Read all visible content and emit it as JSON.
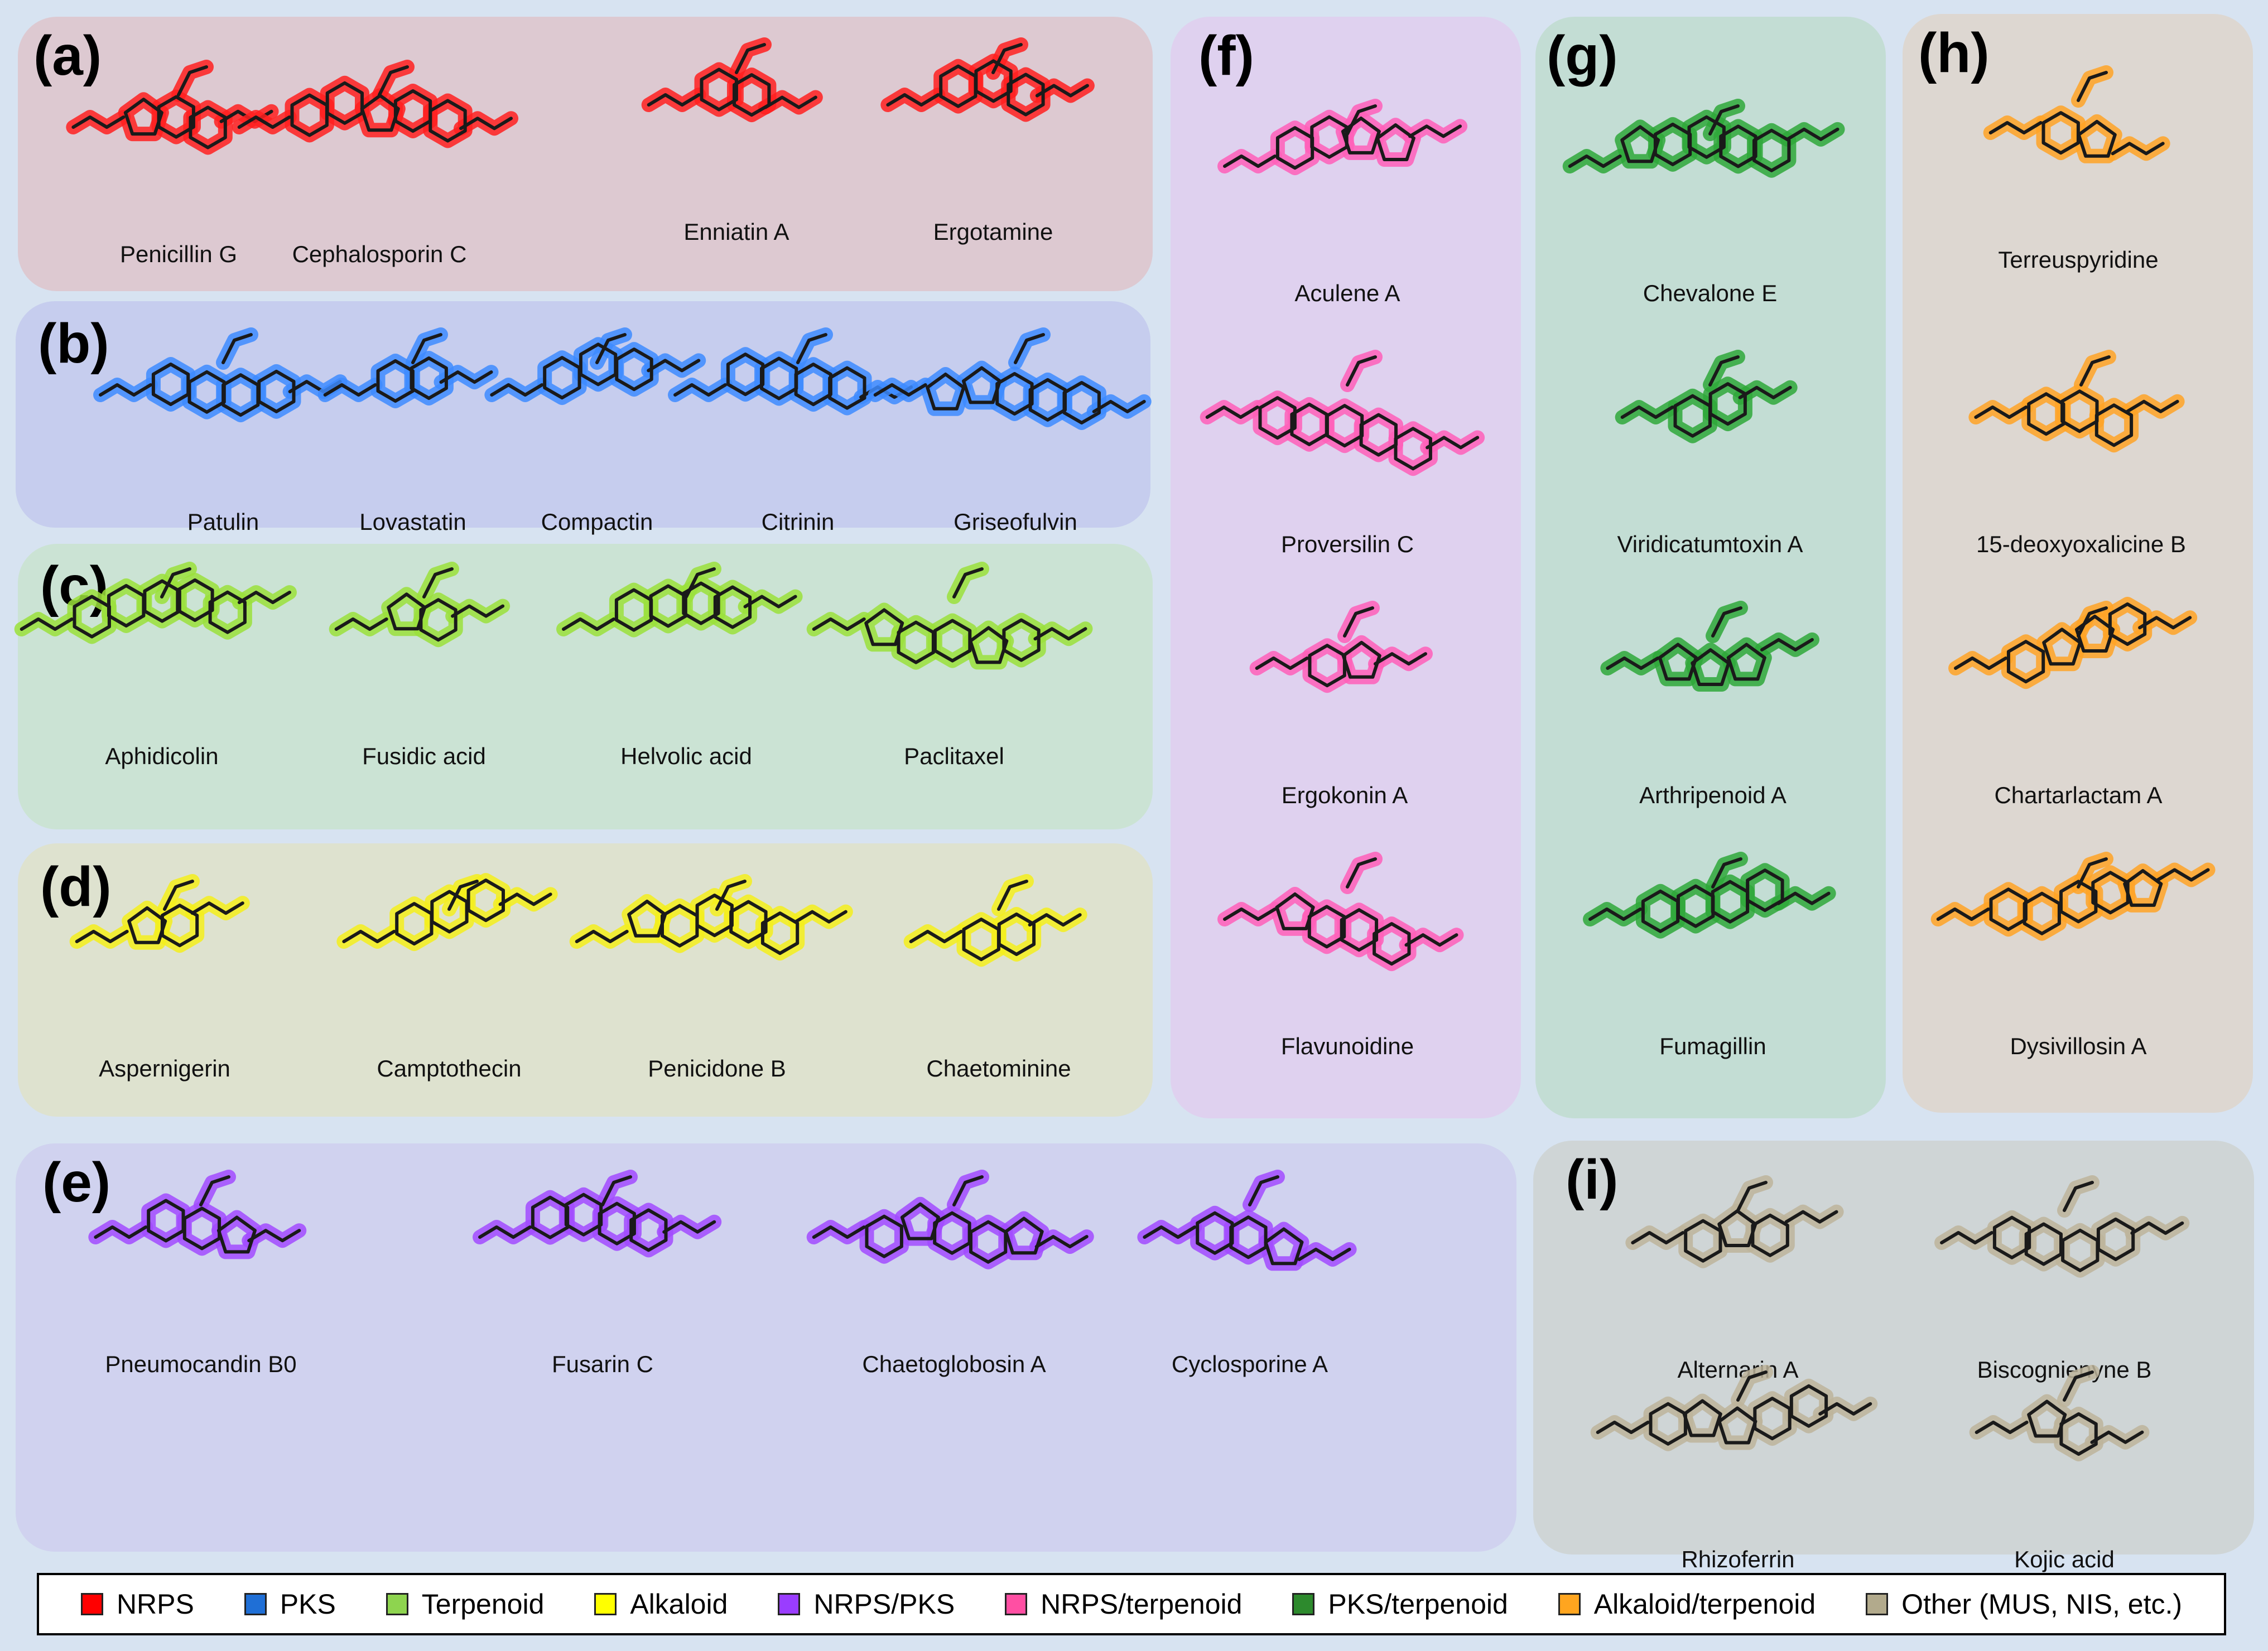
{
  "panels": [
    {
      "label": "(a)",
      "color": "#ff2020",
      "compounds": [
        "Penicillin G",
        "Cephalosporin C",
        "Enniatin A",
        "Ergotamine"
      ]
    },
    {
      "label": "(b)",
      "color": "#3d8bff",
      "compounds": [
        "Patulin",
        "Lovastatin",
        "Compactin",
        "Citrinin",
        "Griseofulvin"
      ]
    },
    {
      "label": "(c)",
      "color": "#9be13b",
      "compounds": [
        "Aphidicolin",
        "Fusidic acid",
        "Helvolic acid",
        "Paclitaxel"
      ]
    },
    {
      "label": "(d)",
      "color": "#f5ee1c",
      "compounds": [
        "Aspernigerin",
        "Camptothecin",
        "Penicidone B",
        "Chaetominine"
      ]
    },
    {
      "label": "(e)",
      "color": "#a24bff",
      "compounds": [
        "Pneumocandin B0",
        "Fusarin C",
        "Chaetoglobosin A",
        "Cyclosporine A"
      ]
    },
    {
      "label": "(f)",
      "color": "#ff5fb8",
      "compounds": [
        "Aculene A",
        "Proversilin C",
        "Ergokonin A",
        "Flavunoidine"
      ]
    },
    {
      "label": "(g)",
      "color": "#2fa83a",
      "compounds": [
        "Chevalone E",
        "Viridicatumtoxin A",
        "Arthripenoid A",
        "Fumagillin"
      ]
    },
    {
      "label": "(h)",
      "color": "#ffa326",
      "compounds": [
        "Terreuspyridine",
        "15-deoxyoxalicine B",
        "Chartarlactam A",
        "Dysivillosin A"
      ]
    },
    {
      "label": "(i)",
      "color": "#bdb49b",
      "compounds": [
        "Alternarin A",
        "Biscognienyne B",
        "Rhizoferrin",
        "Kojic acid"
      ]
    }
  ],
  "legend": [
    {
      "label": "NRPS",
      "color": "#ff0000"
    },
    {
      "label": "PKS",
      "color": "#1f6fd6"
    },
    {
      "label": "Terpenoid",
      "color": "#8ed44f"
    },
    {
      "label": "Alkaloid",
      "color": "#ffff00"
    },
    {
      "label": "NRPS/PKS",
      "color": "#9a3dff"
    },
    {
      "label": "NRPS/terpenoid",
      "color": "#ff4fa3"
    },
    {
      "label": "PKS/terpenoid",
      "color": "#2d8a2d"
    },
    {
      "label": "Alkaloid/terpenoid",
      "color": "#ffa51f"
    },
    {
      "label": "Other (MUS, NIS, etc.)",
      "color": "#b2aa8c"
    }
  ]
}
